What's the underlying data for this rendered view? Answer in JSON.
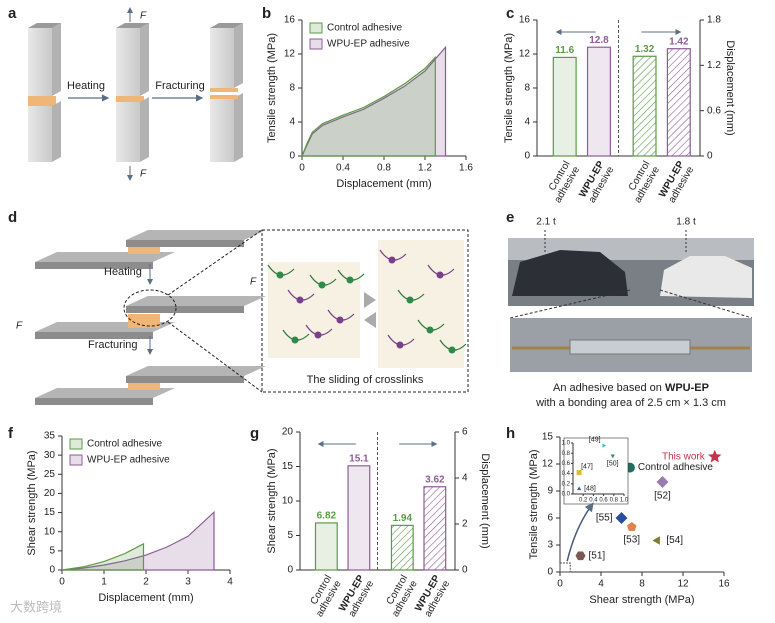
{
  "panel_labels": [
    "a",
    "b",
    "c",
    "d",
    "e",
    "f",
    "g",
    "h"
  ],
  "panel_a": {
    "heating": "Heating",
    "fracturing": "Fracturing",
    "force": "F"
  },
  "panel_d": {
    "heating": "Heating",
    "fracturing": "Fracturing",
    "force": "F",
    "caption": "The sliding of crosslinks"
  },
  "panel_e": {
    "load_left": "2.1 t",
    "load_right": "1.8 t",
    "caption_prefix": "An adhesive based on ",
    "caption_bold": "WPU-EP",
    "caption_line2": "with a bonding area of 2.5 cm × 1.3 cm"
  },
  "watermark": "大数跨境",
  "chart_data": [
    {
      "type": "area",
      "xlabel": "Displacement (mm)",
      "ylabel": "Tensile strength (MPa)",
      "xlim": [
        0,
        1.6
      ],
      "xticks": [
        0,
        0.4,
        0.8,
        1.2,
        1.6
      ],
      "ylim": [
        0,
        16
      ],
      "yticks": [
        0,
        4,
        8,
        12,
        16
      ],
      "legend": "upper left",
      "series": [
        {
          "name": "Control adhesive",
          "color": "#5b9a46",
          "x": [
            0,
            0.05,
            0.1,
            0.2,
            0.4,
            0.6,
            0.8,
            1.0,
            1.2,
            1.3,
            1.3
          ],
          "values": [
            0,
            1.5,
            2.8,
            3.8,
            4.8,
            5.7,
            7.0,
            8.5,
            10.3,
            11.6,
            0
          ]
        },
        {
          "name": "WPU-EP adhesive",
          "color": "#8e5b98",
          "x": [
            0,
            0.05,
            0.1,
            0.2,
            0.4,
            0.6,
            0.8,
            1.0,
            1.2,
            1.4,
            1.4
          ],
          "values": [
            0,
            1.3,
            2.6,
            3.6,
            4.6,
            5.5,
            6.8,
            8.2,
            10.0,
            12.8,
            0
          ]
        }
      ]
    },
    {
      "type": "bar",
      "ylabel": "Tensile strength (MPa)",
      "y2label": "Displacement (mm)",
      "ylim": [
        0,
        16
      ],
      "yticks": [
        0,
        4,
        8,
        12,
        16
      ],
      "y2lim": [
        0,
        1.8
      ],
      "y2ticks": [
        0,
        0.6,
        1.2,
        1.8
      ],
      "categories": [
        [
          "Control",
          "adhesive"
        ],
        [
          "WPU-EP",
          "adhesive"
        ],
        [
          "Control",
          "adhesive"
        ],
        [
          "WPU-EP",
          "adhesive"
        ]
      ],
      "category_bold_first_line": [
        false,
        true,
        false,
        true
      ],
      "values": [
        11.6,
        12.8,
        1.32,
        1.42
      ],
      "axes": [
        "y",
        "y",
        "y2",
        "y2"
      ],
      "colors": [
        "#5b9a46",
        "#8e5b98",
        "#5b9a46",
        "#8e5b98"
      ],
      "hatched": [
        false,
        false,
        true,
        true
      ]
    },
    {
      "type": "area",
      "xlabel": "Displacement (mm)",
      "ylabel": "Shear strength (MPa)",
      "xlim": [
        0,
        4
      ],
      "xticks": [
        0,
        1,
        2,
        3,
        4
      ],
      "ylim": [
        0,
        35
      ],
      "yticks": [
        0,
        5,
        10,
        15,
        20,
        25,
        30,
        35
      ],
      "legend": "upper left",
      "series": [
        {
          "name": "Control adhesive",
          "color": "#5b9a46",
          "x": [
            0,
            0.5,
            1,
            1.5,
            1.94,
            1.94
          ],
          "values": [
            0,
            0.8,
            2.2,
            4.3,
            6.82,
            0
          ]
        },
        {
          "name": "WPU-EP adhesive",
          "color": "#8e5b98",
          "x": [
            0,
            0.5,
            1,
            1.5,
            2,
            2.5,
            3,
            3.62,
            3.62
          ],
          "values": [
            0,
            0.5,
            1.3,
            2.4,
            3.9,
            6.0,
            8.8,
            15.1,
            0
          ]
        }
      ]
    },
    {
      "type": "bar",
      "ylabel": "Shear strength (MPa)",
      "y2label": "Displacement (mm)",
      "ylim": [
        0,
        20
      ],
      "yticks": [
        0,
        5,
        10,
        15,
        20
      ],
      "y2lim": [
        0,
        6
      ],
      "y2ticks": [
        0,
        2,
        4,
        6
      ],
      "categories": [
        [
          "Control",
          "adhesive"
        ],
        [
          "WPU-EP",
          "adhesive"
        ],
        [
          "Control",
          "adhesive"
        ],
        [
          "WPU-EP",
          "adhesive"
        ]
      ],
      "category_bold_first_line": [
        false,
        true,
        false,
        true
      ],
      "values": [
        6.82,
        15.1,
        1.94,
        3.62
      ],
      "axes": [
        "y",
        "y",
        "y2",
        "y2"
      ],
      "colors": [
        "#5b9a46",
        "#8e5b98",
        "#5b9a46",
        "#8e5b98"
      ],
      "hatched": [
        false,
        false,
        true,
        true
      ]
    },
    {
      "type": "scatter",
      "xlabel": "Shear strength (MPa)",
      "ylabel": "Tensile strength (MPa)",
      "xlim": [
        0,
        16
      ],
      "xticks": [
        0,
        4,
        8,
        12,
        16
      ],
      "ylim": [
        0,
        15
      ],
      "yticks": [
        0,
        3,
        6,
        9,
        12,
        15
      ],
      "points": [
        {
          "label": "This work",
          "x": 15.1,
          "y": 12.8,
          "color": "#c8314a",
          "marker": "star"
        },
        {
          "label": "Control adhesive",
          "x": 6.82,
          "y": 11.6,
          "color": "#1f6f5c",
          "marker": "circle"
        },
        {
          "label": "[52]",
          "x": 10,
          "y": 10,
          "color": "#9b7cb0",
          "marker": "diamond"
        },
        {
          "label": "[55]",
          "x": 6,
          "y": 6,
          "color": "#2a4f9a",
          "marker": "diamond"
        },
        {
          "label": "[53]",
          "x": 7,
          "y": 5,
          "color": "#e0824a",
          "marker": "pentagon"
        },
        {
          "label": "[54]",
          "x": 9.5,
          "y": 3.5,
          "color": "#7d7d2e",
          "marker": "triangle-left"
        },
        {
          "label": "[51]",
          "x": 2,
          "y": 1.8,
          "color": "#7a5a50",
          "marker": "hexagon"
        }
      ],
      "inset": {
        "xlim": [
          0,
          1
        ],
        "ylim": [
          0,
          1
        ],
        "xticks": [
          0.2,
          0.4,
          0.6,
          0.8,
          {
            "value": 1,
            "label": "1.0"
          }
        ],
        "yticks": [
          {
            "value": 0,
            "label": "0.0"
          },
          0.2,
          0.4,
          0.6,
          0.8,
          {
            "value": 1,
            "label": "1.0"
          }
        ],
        "points": [
          {
            "label": "[49]",
            "x": 0.6,
            "y": 0.95,
            "color": "#3fb6d6",
            "marker": "triangle-right"
          },
          {
            "label": "[50]",
            "x": 0.78,
            "y": 0.75,
            "color": "#2e8b6e",
            "marker": "triangle-down"
          },
          {
            "label": "[47]",
            "x": 0.12,
            "y": 0.42,
            "color": "#e0b93a",
            "marker": "square"
          },
          {
            "label": "[48]",
            "x": 0.12,
            "y": 0.1,
            "color": "#3a63b8",
            "marker": "triangle"
          }
        ]
      }
    }
  ]
}
